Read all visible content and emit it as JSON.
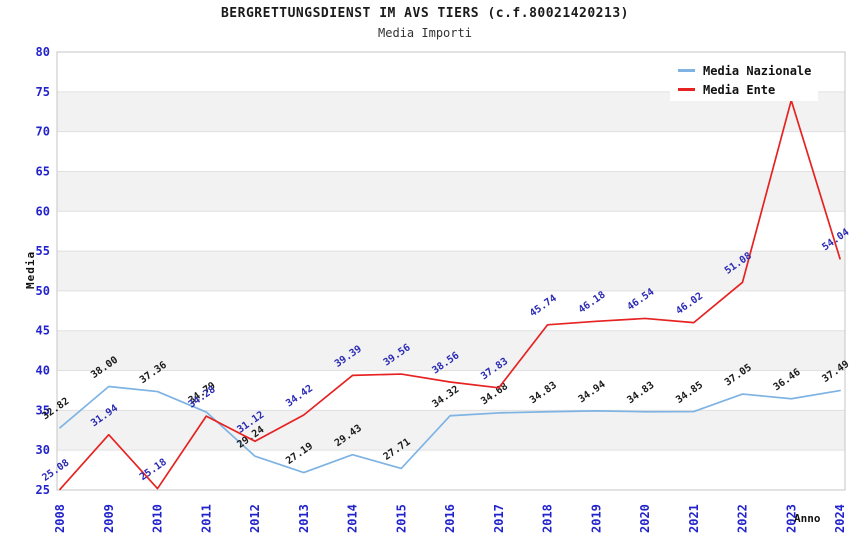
{
  "title": "BERGRETTUNGSDIENST IM AVS TIERS (c.f.80021420213)",
  "subtitle": "Media Importi",
  "legend": [
    {
      "label": "Media Nazionale",
      "color": "#7eb3e3"
    },
    {
      "label": "Media Ente",
      "color": "#e62222"
    }
  ],
  "colors": {
    "axis_text": "#2323cc",
    "nazionale_line": "#7eb3e3",
    "nazionale_label": "#1a1a1a",
    "ente_line": "#e62222",
    "ente_label": "#2a2ab4",
    "band_gray": "#f2f2f2",
    "gridline": "#e0e0e0",
    "plot_border": "#c6c6c6"
  },
  "chart_data": {
    "type": "line",
    "title": "BERGRETTUNGSDIENST IM AVS TIERS (c.f.80021420213)",
    "subtitle": "Media Importi",
    "xlabel": "Anno",
    "ylabel": "Media",
    "ylim": [
      25,
      80
    ],
    "ytick_step": 5,
    "grid": "horizontal-bands",
    "legend_position": "top-right",
    "x": [
      "2008",
      "2009",
      "2010",
      "2011",
      "2012",
      "2013",
      "2014",
      "2015",
      "2016",
      "2017",
      "2018",
      "2019",
      "2020",
      "2021",
      "2022",
      "2023",
      "2024"
    ],
    "series": [
      {
        "name": "Media Nazionale",
        "values": [
          32.82,
          38.0,
          37.36,
          34.79,
          29.24,
          27.19,
          29.43,
          27.71,
          34.32,
          34.68,
          34.83,
          34.94,
          34.83,
          34.85,
          37.05,
          36.46,
          37.49
        ]
      },
      {
        "name": "Media Ente",
        "values": [
          25.08,
          31.94,
          25.18,
          34.28,
          31.12,
          34.42,
          39.39,
          39.56,
          38.56,
          37.83,
          45.74,
          46.18,
          46.54,
          46.02,
          51.08,
          73.93,
          54.04
        ]
      }
    ]
  }
}
